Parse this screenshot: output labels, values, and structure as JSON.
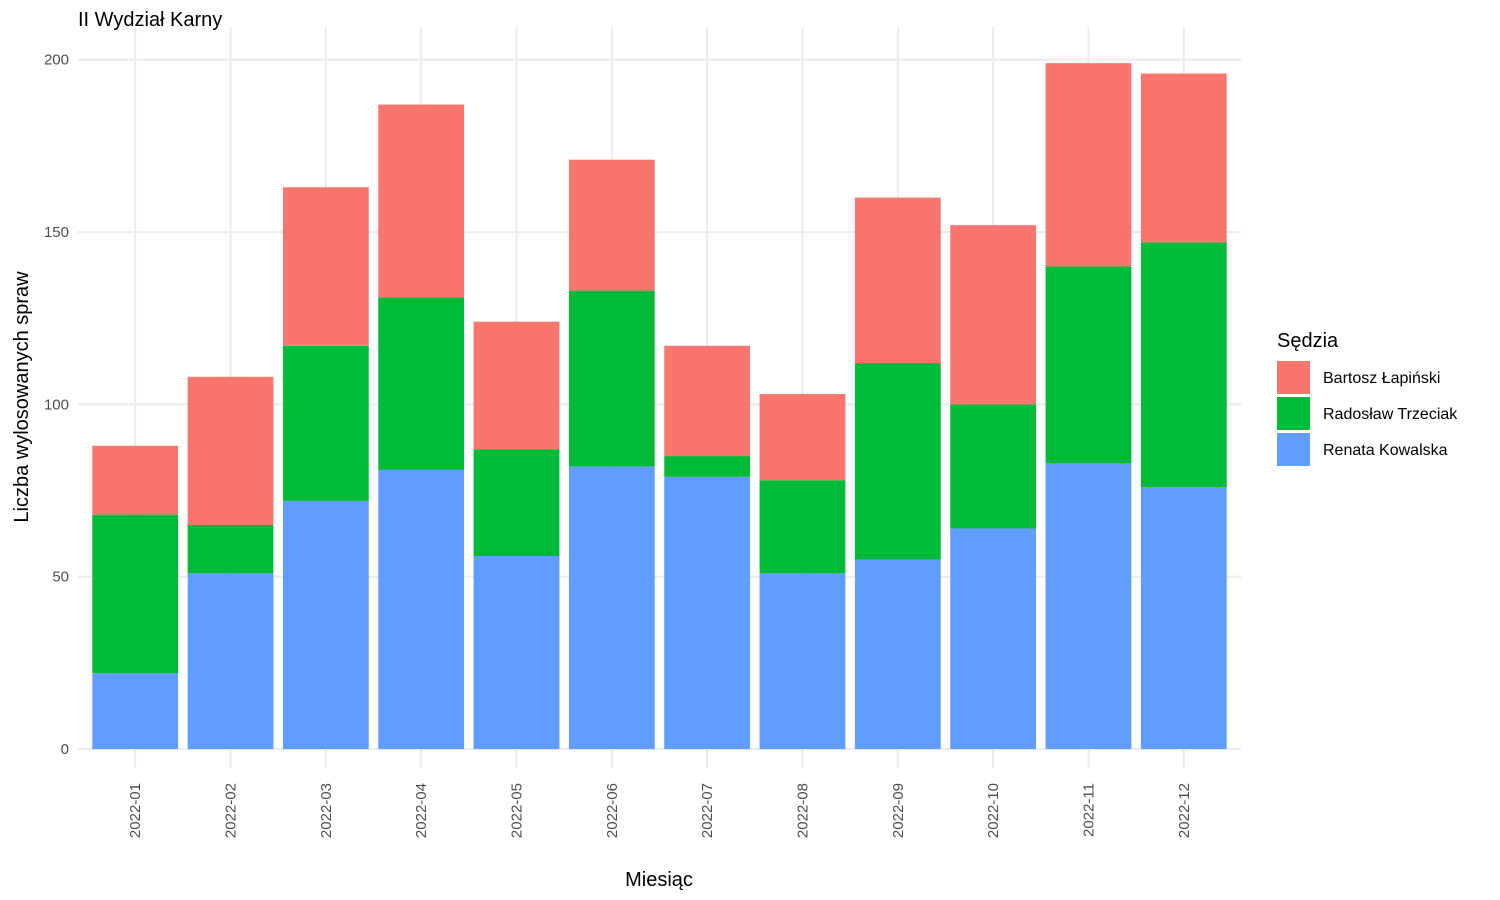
{
  "chart_data": {
    "type": "bar",
    "stacked": true,
    "title": "II Wydział Karny",
    "xlabel": "Miesiąc",
    "ylabel": "Liczba wylosowanych spraw",
    "ylim": [
      0,
      200
    ],
    "yticks": [
      0,
      50,
      100,
      150,
      200
    ],
    "grid": true,
    "legend_title": "Sędzia",
    "legend_position": "right",
    "categories": [
      "2022-01",
      "2022-02",
      "2022-03",
      "2022-04",
      "2022-05",
      "2022-06",
      "2022-07",
      "2022-08",
      "2022-09",
      "2022-10",
      "2022-11",
      "2022-12"
    ],
    "series": [
      {
        "name": "Renata Kowalska",
        "color": "#619CFF",
        "values": [
          22,
          51,
          72,
          81,
          56,
          82,
          79,
          51,
          55,
          64,
          83,
          76
        ]
      },
      {
        "name": "Radosław Trzeciak",
        "color": "#00BA38",
        "values": [
          46,
          14,
          45,
          50,
          31,
          51,
          6,
          27,
          57,
          36,
          57,
          71
        ]
      },
      {
        "name": "Bartosz Łapiński",
        "color": "#F8766D",
        "values": [
          20,
          43,
          46,
          56,
          37,
          38,
          32,
          25,
          48,
          52,
          59,
          49
        ]
      }
    ],
    "legend_order": [
      "Bartosz Łapiński",
      "Radosław Trzeciak",
      "Renata Kowalska"
    ]
  }
}
